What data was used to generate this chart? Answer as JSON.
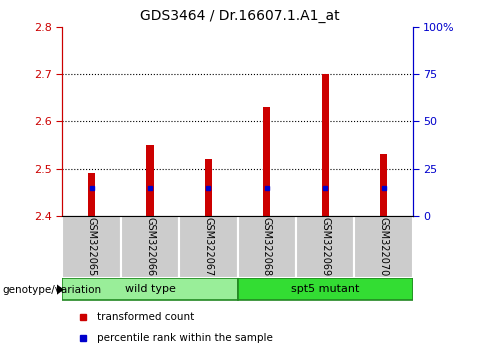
{
  "title": "GDS3464 / Dr.16607.1.A1_at",
  "samples": [
    "GSM322065",
    "GSM322066",
    "GSM322067",
    "GSM322068",
    "GSM322069",
    "GSM322070"
  ],
  "transformed_counts": [
    2.49,
    2.55,
    2.52,
    2.63,
    2.7,
    2.53
  ],
  "percentile_ranks": [
    15,
    15,
    15,
    15,
    15,
    15
  ],
  "ylim_left": [
    2.4,
    2.8
  ],
  "ylim_right": [
    0,
    100
  ],
  "yticks_left": [
    2.4,
    2.5,
    2.6,
    2.7,
    2.8
  ],
  "yticks_right": [
    0,
    25,
    50,
    75,
    100
  ],
  "bar_bottom": 2.4,
  "bar_color": "#cc0000",
  "percentile_color": "#0000cc",
  "left_tick_color": "#cc0000",
  "right_tick_color": "#0000cc",
  "legend_items": [
    "transformed count",
    "percentile rank within the sample"
  ],
  "legend_colors": [
    "#cc0000",
    "#0000cc"
  ],
  "genotype_label": "genotype/variation",
  "bar_width": 0.12,
  "cell_bg": "#cccccc",
  "cell_edge": "#ffffff",
  "group_data": [
    {
      "label": "wild type",
      "start": 0,
      "end": 3,
      "color": "#99ee99"
    },
    {
      "label": "spt5 mutant",
      "start": 3,
      "end": 6,
      "color": "#33dd33"
    }
  ]
}
